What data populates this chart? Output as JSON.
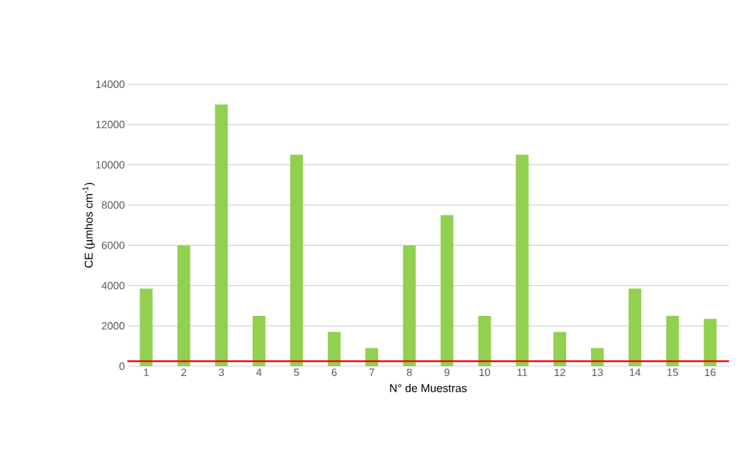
{
  "chart_data": {
    "type": "bar",
    "xlabel": "N° de Muestras",
    "ylabel": "CE (µmhos cm$^{-1}$)",
    "categories": [
      "1",
      "2",
      "3",
      "4",
      "5",
      "6",
      "7",
      "8",
      "9",
      "10",
      "11",
      "12",
      "13",
      "14",
      "15",
      "16"
    ],
    "values": [
      3850,
      6000,
      13000,
      2500,
      10500,
      1700,
      900,
      6000,
      7500,
      2500,
      10500,
      1700,
      900,
      3850,
      2500,
      2350
    ],
    "color": "#92d050",
    "ylim": [
      0,
      14000
    ],
    "yticks": [
      0,
      2000,
      4000,
      6000,
      8000,
      10000,
      12000,
      14000
    ],
    "grid": "y",
    "ref_lines": [
      {
        "axis": "y",
        "value": 250,
        "color": "#ff0000"
      }
    ]
  }
}
